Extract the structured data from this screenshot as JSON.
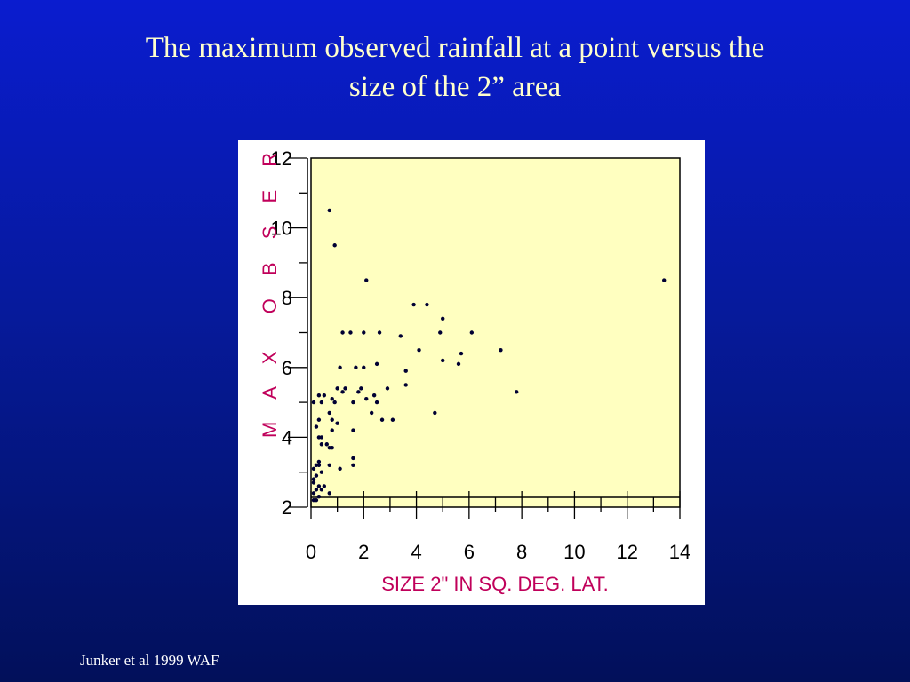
{
  "slide": {
    "title_line1": "The maximum observed rainfall at a point versus the",
    "title_line2": "size of the 2” area",
    "footer": "Junker et al 1999 WAF"
  },
  "colors": {
    "background_top": "#0a1ccf",
    "background_bottom": "#02105a",
    "title": "#ffffcc",
    "plot_area": "#ffffc0",
    "axis_label": "#c0005a",
    "points": "#000033"
  },
  "chart_data": {
    "type": "scatter",
    "title": "",
    "xlabel": "SIZE 2\" IN SQ. DEG. LAT.",
    "ylabel": "M A X  O B S E R V",
    "xlim": [
      0,
      14
    ],
    "ylim": [
      2,
      12
    ],
    "xticks": [
      0,
      2,
      4,
      6,
      8,
      10,
      12,
      14
    ],
    "yticks": [
      2,
      4,
      6,
      8,
      10,
      12
    ],
    "x_minor_step": 1,
    "y_minor_step": 1,
    "grid": false,
    "legend": "none",
    "points": [
      [
        0.7,
        10.5
      ],
      [
        0.9,
        9.5
      ],
      [
        2.1,
        8.5
      ],
      [
        13.4,
        8.5
      ],
      [
        3.9,
        7.8
      ],
      [
        4.4,
        7.8
      ],
      [
        5.0,
        7.4
      ],
      [
        1.2,
        7.0
      ],
      [
        1.5,
        7.0
      ],
      [
        2.0,
        7.0
      ],
      [
        2.6,
        7.0
      ],
      [
        4.9,
        7.0
      ],
      [
        6.1,
        7.0
      ],
      [
        3.4,
        6.9
      ],
      [
        4.1,
        6.5
      ],
      [
        7.2,
        6.5
      ],
      [
        5.7,
        6.4
      ],
      [
        5.0,
        6.2
      ],
      [
        2.5,
        6.1
      ],
      [
        5.6,
        6.1
      ],
      [
        1.1,
        6.0
      ],
      [
        1.7,
        6.0
      ],
      [
        2.0,
        6.0
      ],
      [
        3.6,
        5.9
      ],
      [
        3.6,
        5.5
      ],
      [
        1.0,
        5.4
      ],
      [
        1.3,
        5.4
      ],
      [
        1.9,
        5.4
      ],
      [
        2.9,
        5.4
      ],
      [
        7.8,
        5.3
      ],
      [
        1.2,
        5.3
      ],
      [
        1.8,
        5.3
      ],
      [
        0.3,
        5.2
      ],
      [
        0.5,
        5.2
      ],
      [
        2.4,
        5.2
      ],
      [
        0.8,
        5.1
      ],
      [
        2.1,
        5.1
      ],
      [
        1.6,
        5.0
      ],
      [
        2.5,
        5.0
      ],
      [
        0.1,
        5.0
      ],
      [
        0.4,
        5.0
      ],
      [
        0.9,
        5.0
      ],
      [
        0.7,
        4.7
      ],
      [
        2.3,
        4.7
      ],
      [
        4.7,
        4.7
      ],
      [
        0.3,
        4.5
      ],
      [
        0.8,
        4.5
      ],
      [
        2.7,
        4.5
      ],
      [
        3.1,
        4.5
      ],
      [
        1.0,
        4.4
      ],
      [
        0.2,
        4.3
      ],
      [
        0.8,
        4.2
      ],
      [
        1.6,
        4.2
      ],
      [
        0.3,
        4.0
      ],
      [
        0.4,
        4.0
      ],
      [
        0.4,
        3.8
      ],
      [
        0.6,
        3.8
      ],
      [
        0.7,
        3.7
      ],
      [
        0.8,
        3.7
      ],
      [
        1.6,
        3.4
      ],
      [
        0.3,
        3.3
      ],
      [
        1.6,
        3.2
      ],
      [
        0.2,
        3.2
      ],
      [
        0.3,
        3.2
      ],
      [
        0.7,
        3.2
      ],
      [
        0.1,
        3.1
      ],
      [
        1.1,
        3.1
      ],
      [
        0.4,
        3.0
      ],
      [
        0.2,
        2.9
      ],
      [
        0.1,
        2.8
      ],
      [
        0.1,
        2.7
      ],
      [
        0.3,
        2.6
      ],
      [
        0.5,
        2.6
      ],
      [
        0.2,
        2.5
      ],
      [
        0.4,
        2.5
      ],
      [
        0.1,
        2.4
      ],
      [
        0.7,
        2.4
      ],
      [
        0.3,
        2.3
      ],
      [
        0.1,
        2.2
      ],
      [
        0.2,
        2.2
      ]
    ]
  }
}
